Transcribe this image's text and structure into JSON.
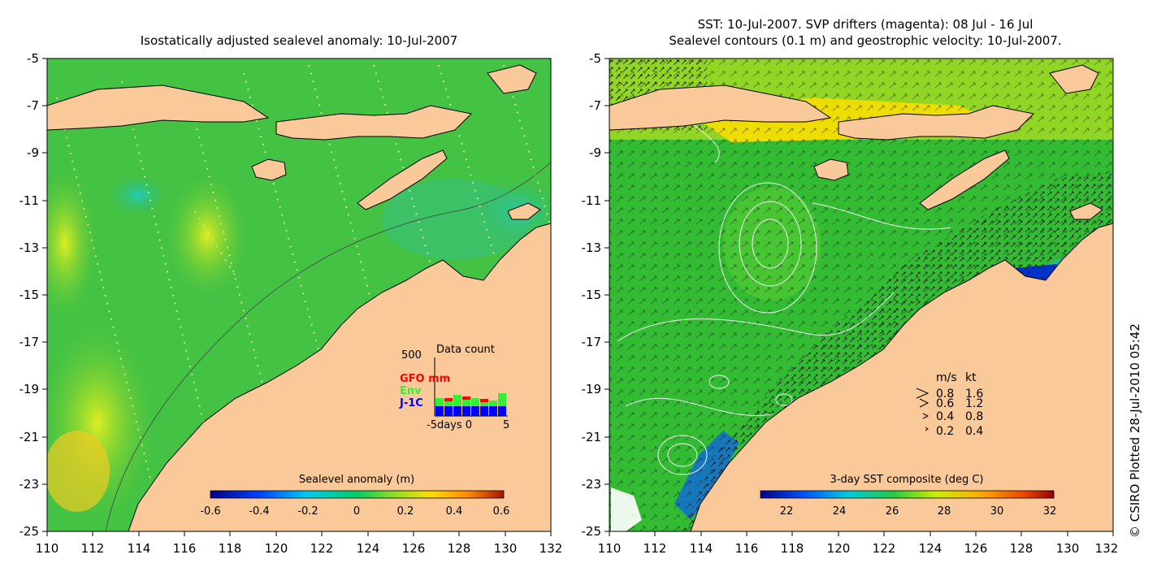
{
  "left_panel": {
    "title": "Isostatically adjusted sealevel anomaly: 10-Jul-2007",
    "y_ticks": [
      "-5",
      "-7",
      "-9",
      "-11",
      "-13",
      "-15",
      "-17",
      "-19",
      "-21",
      "-23",
      "-25"
    ],
    "x_ticks": [
      "110",
      "112",
      "114",
      "116",
      "118",
      "120",
      "122",
      "124",
      "126",
      "128",
      "130",
      "132"
    ],
    "inset": {
      "title": "Data count",
      "ymax_label": "500",
      "legend": [
        {
          "label": "GFO mm",
          "color": "#ff0000"
        },
        {
          "label": "Env",
          "color": "#33ee33"
        },
        {
          "label": "J-1C",
          "color": "#0000ff"
        }
      ],
      "x_label": "-5days 0",
      "x_end": "5"
    },
    "colorbar": {
      "title": "Sealevel anomaly (m)",
      "ticks": [
        "-0.6",
        "-0.4",
        "-0.2",
        "0",
        "0.2",
        "0.4",
        "0.6"
      ]
    }
  },
  "right_panel": {
    "title_line1": "SST: 10-Jul-2007. SVP drifters (magenta): 08 Jul - 16 Jul",
    "title_line2": "Sealevel contours (0.1 m) and geostrophic velocity: 10-Jul-2007.",
    "y_ticks": [
      "-5",
      "-7",
      "-9",
      "-11",
      "-13",
      "-15",
      "-17",
      "-19",
      "-21",
      "-23",
      "-25"
    ],
    "x_ticks": [
      "110",
      "112",
      "114",
      "116",
      "118",
      "120",
      "122",
      "124",
      "126",
      "128",
      "130",
      "132"
    ],
    "velocity_legend": {
      "header_ms": "m/s",
      "header_kt": "kt",
      "rows": [
        {
          "ms": "0.8",
          "kt": "1.6"
        },
        {
          "ms": "0.6",
          "kt": "1.2"
        },
        {
          "ms": "0.4",
          "kt": "0.8"
        },
        {
          "ms": "0.2",
          "kt": "0.4"
        }
      ]
    },
    "colorbar": {
      "title": "3-day SST composite (deg C)",
      "ticks": [
        "22",
        "24",
        "26",
        "28",
        "30",
        "32"
      ]
    }
  },
  "credit": "© CSIRO Plotted 28-Jul-2010 05:42",
  "colors": {
    "land": "#f9c99a",
    "sea": "#33bb33"
  }
}
